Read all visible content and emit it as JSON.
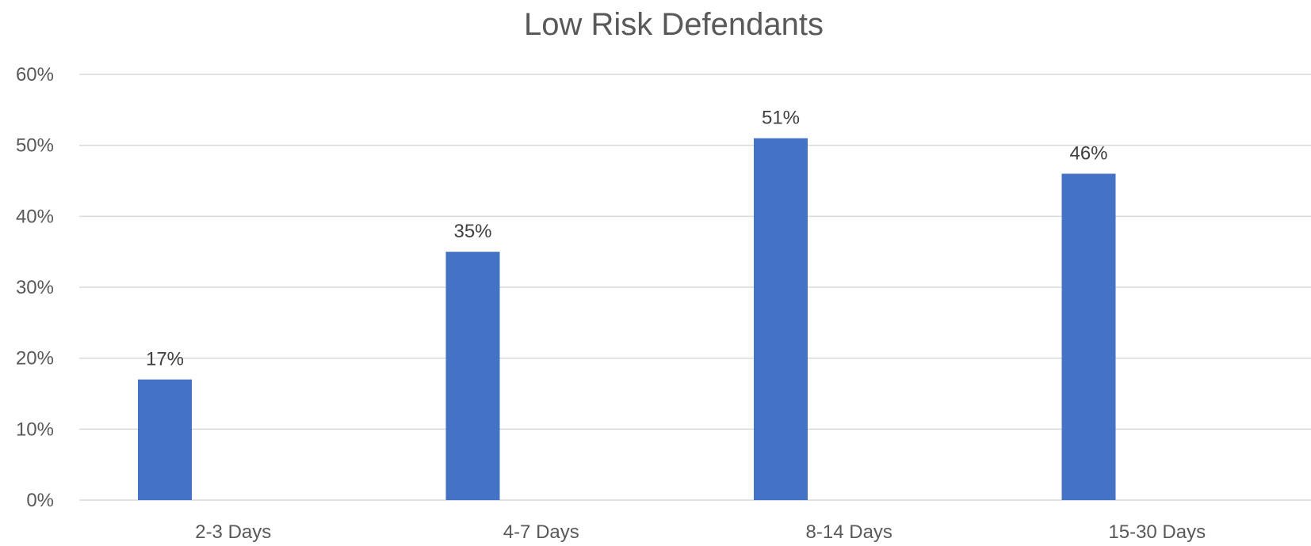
{
  "chart_data": {
    "type": "bar",
    "title": "Low Risk Defendants",
    "categories": [
      "2-3 Days",
      "4-7 Days",
      "8-14 Days",
      "15-30 Days"
    ],
    "values": [
      17,
      35,
      51,
      46
    ],
    "data_labels": [
      "17%",
      "35%",
      "51%",
      "46%"
    ],
    "ylim": [
      0,
      60
    ],
    "yticks": [
      0,
      10,
      20,
      30,
      40,
      50,
      60
    ],
    "ytick_labels": [
      "0%",
      "10%",
      "20%",
      "30%",
      "40%",
      "50%",
      "60%"
    ],
    "xlabel": "",
    "ylabel": "",
    "grid": true,
    "legend": false,
    "bar_color": "#4472C4"
  }
}
